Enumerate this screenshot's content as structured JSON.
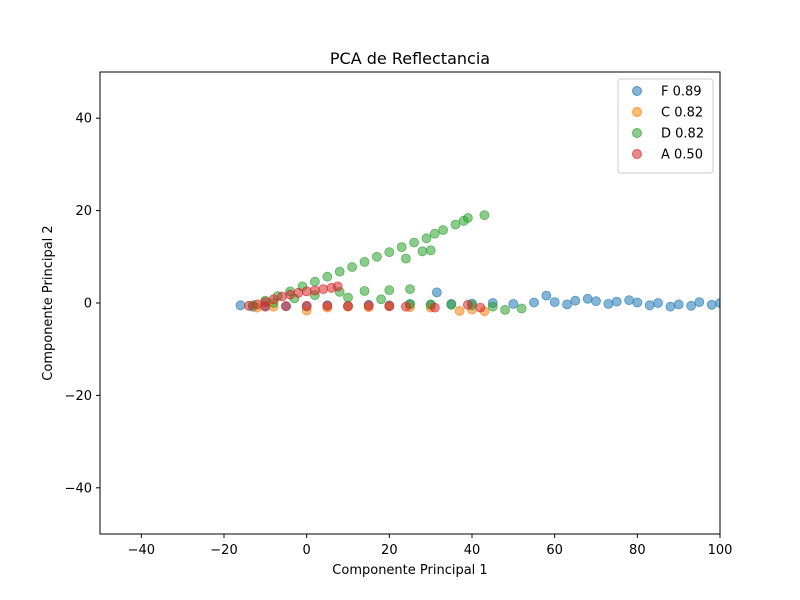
{
  "chart_data": {
    "type": "scatter",
    "title": "PCA de Reflectancia",
    "xlabel": "Componente Principal 1",
    "ylabel": "Componente Principal 2",
    "xlim": [
      -50,
      100
    ],
    "ylim": [
      -50,
      50
    ],
    "xticks": [
      -40,
      -20,
      0,
      20,
      40,
      60,
      80,
      100
    ],
    "yticks": [
      -40,
      -20,
      0,
      20,
      40
    ],
    "xtick_labels": [
      "−40",
      "−20",
      "0",
      "20",
      "40",
      "60",
      "80",
      "100"
    ],
    "ytick_labels": [
      "−40",
      "−20",
      "0",
      "20",
      "40"
    ],
    "grid": false,
    "legend_position": "upper-right",
    "series": [
      {
        "name": "F 0.89",
        "color": "#1f77b4",
        "alpha": 0.55,
        "points": [
          [
            -16,
            -0.5
          ],
          [
            -13,
            -0.8
          ],
          [
            -10,
            -0.6
          ],
          [
            -5,
            -0.7
          ],
          [
            0,
            -0.8
          ],
          [
            5,
            -0.5
          ],
          [
            10,
            -0.6
          ],
          [
            15,
            -0.4
          ],
          [
            20,
            -0.5
          ],
          [
            25,
            -0.3
          ],
          [
            30,
            -0.4
          ],
          [
            31.5,
            2.3
          ],
          [
            35,
            -0.2
          ],
          [
            40,
            -0.1
          ],
          [
            45,
            0.0
          ],
          [
            50,
            -0.2
          ],
          [
            55,
            0.1
          ],
          [
            58,
            1.6
          ],
          [
            60,
            0.2
          ],
          [
            63,
            -0.3
          ],
          [
            65,
            0.5
          ],
          [
            68,
            0.9
          ],
          [
            70,
            0.4
          ],
          [
            73,
            -0.2
          ],
          [
            75,
            0.3
          ],
          [
            78,
            0.6
          ],
          [
            80,
            0.1
          ],
          [
            83,
            -0.5
          ],
          [
            85,
            0.0
          ],
          [
            88,
            -0.8
          ],
          [
            90,
            -0.3
          ],
          [
            93,
            -0.6
          ],
          [
            95,
            0.2
          ],
          [
            98,
            -0.4
          ],
          [
            100,
            0.0
          ]
        ]
      },
      {
        "name": "C 0.82",
        "color": "#ff7f0e",
        "alpha": 0.55,
        "points": [
          [
            -12,
            -1.0
          ],
          [
            -8,
            -0.8
          ],
          [
            0,
            -1.6
          ],
          [
            5,
            -1.0
          ],
          [
            10,
            -0.8
          ],
          [
            15,
            -0.9
          ],
          [
            20,
            -0.7
          ],
          [
            25,
            -0.9
          ],
          [
            30,
            -1.0
          ],
          [
            37,
            -1.7
          ],
          [
            40,
            -1.4
          ],
          [
            43,
            -1.8
          ]
        ]
      },
      {
        "name": "D 0.82",
        "color": "#2ca02c",
        "alpha": 0.55,
        "points": [
          [
            -13,
            -0.5
          ],
          [
            -10,
            0.5
          ],
          [
            -7,
            1.5
          ],
          [
            -4,
            2.5
          ],
          [
            -1,
            3.6
          ],
          [
            2,
            4.6
          ],
          [
            5,
            5.7
          ],
          [
            8,
            6.8
          ],
          [
            11,
            7.8
          ],
          [
            14,
            8.9
          ],
          [
            17,
            10.0
          ],
          [
            20,
            11.0
          ],
          [
            23,
            12.1
          ],
          [
            26,
            13.1
          ],
          [
            29,
            14.0
          ],
          [
            31,
            15.0
          ],
          [
            33,
            15.8
          ],
          [
            36,
            17.0
          ],
          [
            38,
            17.8
          ],
          [
            39,
            18.4
          ],
          [
            43,
            19.0
          ],
          [
            28,
            11.2
          ],
          [
            30,
            11.4
          ],
          [
            24,
            9.6
          ],
          [
            -8,
            0.0
          ],
          [
            -3,
            1.0
          ],
          [
            2,
            1.7
          ],
          [
            8,
            2.4
          ],
          [
            14,
            2.6
          ],
          [
            20,
            2.8
          ],
          [
            25,
            3.0
          ],
          [
            10,
            1.2
          ],
          [
            18,
            0.8
          ],
          [
            25,
            -0.2
          ],
          [
            30,
            -0.3
          ],
          [
            35,
            -0.4
          ],
          [
            40,
            -0.5
          ],
          [
            45,
            -0.8
          ],
          [
            48,
            -1.5
          ],
          [
            52,
            -1.2
          ]
        ]
      },
      {
        "name": "A 0.50",
        "color": "#d62728",
        "alpha": 0.55,
        "points": [
          [
            -14,
            -0.6
          ],
          [
            -12,
            -0.3
          ],
          [
            -10,
            0.2
          ],
          [
            -8,
            0.8
          ],
          [
            -6,
            1.4
          ],
          [
            -4,
            1.8
          ],
          [
            -2,
            2.2
          ],
          [
            0,
            2.5
          ],
          [
            2,
            2.7
          ],
          [
            4,
            3.0
          ],
          [
            6,
            3.3
          ],
          [
            7.5,
            3.6
          ],
          [
            -10,
            -0.8
          ],
          [
            -5,
            -0.7
          ],
          [
            0,
            -0.6
          ],
          [
            5,
            -0.6
          ],
          [
            10,
            -0.7
          ],
          [
            15,
            -0.6
          ],
          [
            20,
            -0.7
          ],
          [
            24,
            -0.8
          ],
          [
            31,
            -1.0
          ],
          [
            39,
            -0.4
          ],
          [
            42,
            -1.0
          ]
        ]
      }
    ]
  }
}
